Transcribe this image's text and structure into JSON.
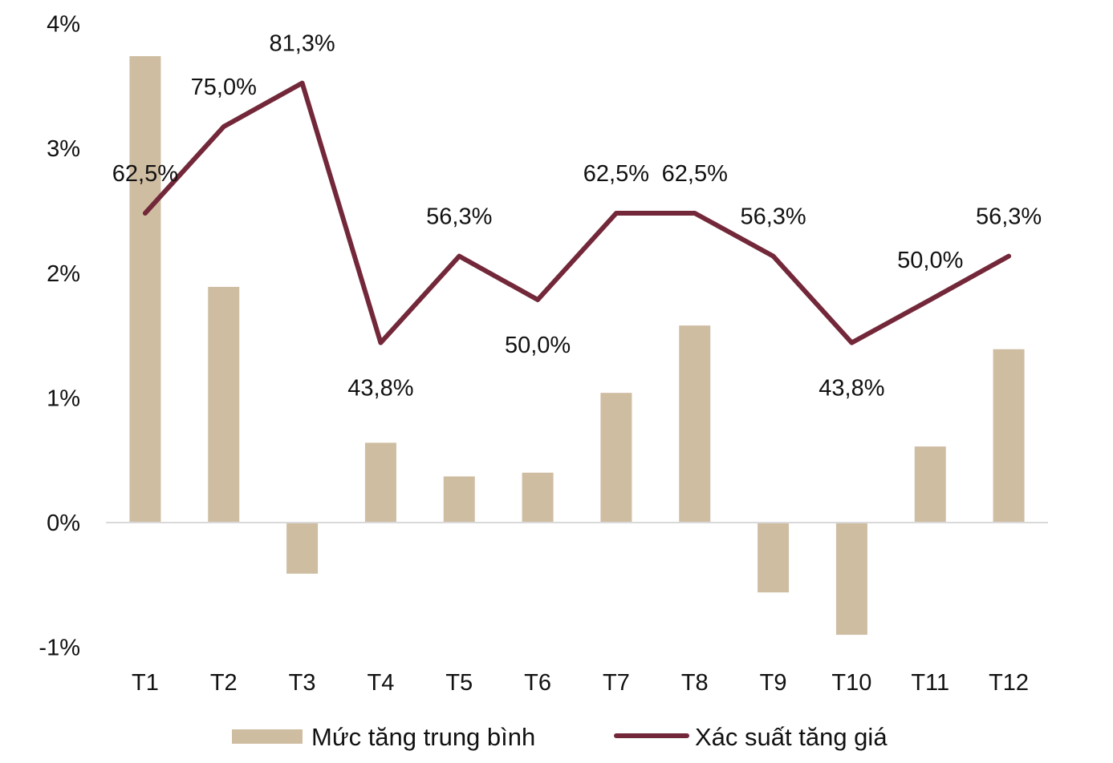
{
  "chart_data": {
    "type": "bar+line",
    "categories": [
      "T1",
      "T2",
      "T3",
      "T4",
      "T5",
      "T6",
      "T7",
      "T8",
      "T9",
      "T10",
      "T11",
      "T12"
    ],
    "yticks": [
      "4%",
      "3%",
      "2%",
      "1%",
      "0%",
      "-1%"
    ],
    "ylim": [
      -1,
      4
    ],
    "series": [
      {
        "name": "Mức tăng trung bình",
        "type": "bar",
        "color": "#cfbda2",
        "values": [
          3.74,
          1.89,
          -0.41,
          0.64,
          0.37,
          0.4,
          1.04,
          1.58,
          -0.56,
          -0.9,
          0.61,
          1.39
        ]
      },
      {
        "name": "Xác suất tăng giá",
        "type": "line",
        "color": "#73283a",
        "values": [
          62.5,
          75.0,
          81.3,
          43.8,
          56.3,
          50.0,
          62.5,
          62.5,
          56.3,
          43.8,
          50.0,
          56.3
        ],
        "labels": [
          "62,5%",
          "75,0%",
          "81,3%",
          "43,8%",
          "56,3%",
          "50,0%",
          "62,5%",
          "62,5%",
          "56,3%",
          "43,8%",
          "50,0%",
          "56,3%"
        ],
        "label_positions": [
          "above",
          "above",
          "above",
          "below",
          "above",
          "below",
          "above",
          "above",
          "above",
          "below",
          "above",
          "above"
        ]
      }
    ],
    "legend": {
      "position": "bottom",
      "items": [
        {
          "label": "Mức tăng trung bình",
          "kind": "bar",
          "color": "#cfbda2"
        },
        {
          "label": "Xác suất tăng giá",
          "kind": "line",
          "color": "#73283a"
        }
      ]
    }
  }
}
